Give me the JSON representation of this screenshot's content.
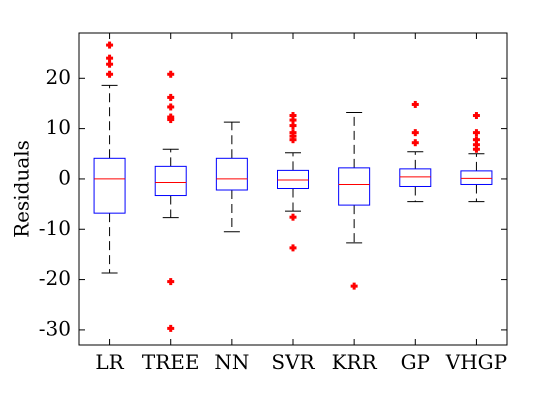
{
  "chart_data": {
    "type": "boxplot",
    "title": "",
    "xlabel": "",
    "ylabel": "Residuals",
    "ylim": [
      -33,
      29
    ],
    "yticks": [
      20,
      10,
      0,
      -10,
      -20,
      -30
    ],
    "ytick_labels": [
      "20",
      "10",
      "0",
      "-10",
      "-20",
      "-30"
    ],
    "grid": false,
    "colors": {
      "box": "#0000ff",
      "median": "#ff0000",
      "whisker": "#000000",
      "outlier": "#ff0000"
    },
    "categories": [
      "LR",
      "TREE",
      "NN",
      "SVR",
      "KRR",
      "GP",
      "VHGP"
    ],
    "boxes": [
      {
        "name": "LR",
        "whislo": -18.7,
        "q1": -6.8,
        "med": 0.0,
        "q3": 4.1,
        "whishi": 18.6,
        "fliers": [
          26.6,
          24.0,
          22.8,
          20.8
        ]
      },
      {
        "name": "TREE",
        "whislo": -7.7,
        "q1": -3.3,
        "med": -0.7,
        "q3": 2.5,
        "whishi": 5.9,
        "fliers": [
          20.8,
          16.2,
          14.3,
          12.3,
          11.8,
          -20.4,
          -29.7
        ]
      },
      {
        "name": "NN",
        "whislo": -10.5,
        "q1": -2.2,
        "med": 0.0,
        "q3": 4.1,
        "whishi": 11.3,
        "fliers": []
      },
      {
        "name": "SVR",
        "whislo": -6.4,
        "q1": -1.9,
        "med": -0.2,
        "q3": 1.7,
        "whishi": 5.2,
        "fliers": [
          12.6,
          11.7,
          10.6,
          9.2,
          8.5,
          7.8,
          -7.6,
          -13.7
        ]
      },
      {
        "name": "KRR",
        "whislo": -12.7,
        "q1": -5.2,
        "med": -1.1,
        "q3": 2.2,
        "whishi": 13.2,
        "fliers": [
          -21.3
        ]
      },
      {
        "name": "GP",
        "whislo": -4.5,
        "q1": -1.5,
        "med": 0.4,
        "q3": 2.0,
        "whishi": 5.4,
        "fliers": [
          14.8,
          9.2,
          7.2
        ]
      },
      {
        "name": "VHGP",
        "whislo": -4.5,
        "q1": -1.1,
        "med": 0.1,
        "q3": 1.6,
        "whishi": 5.0,
        "fliers": [
          12.6,
          9.2,
          7.8,
          6.8,
          5.9
        ]
      }
    ]
  }
}
